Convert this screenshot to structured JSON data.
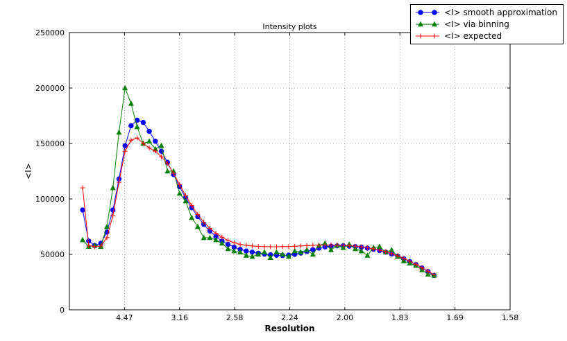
{
  "chart_data": {
    "type": "line",
    "title": "Intensity plots",
    "xlabel": "Resolution",
    "ylabel": "<I>",
    "x_units": "x axis is linear in 1/d^2; tick labels show resolution d in Angstrom",
    "xlim": [
      0,
      0.4
    ],
    "ylim": [
      0,
      250000
    ],
    "grid": {
      "show": true,
      "color": "#888888",
      "dash": "1,3"
    },
    "legend_position": "upper-right, outside top of axes",
    "x_ticks": [
      {
        "pos": 0.05,
        "label": "4.47"
      },
      {
        "pos": 0.1,
        "label": "3.16"
      },
      {
        "pos": 0.15,
        "label": "2.58"
      },
      {
        "pos": 0.2,
        "label": "2.24"
      },
      {
        "pos": 0.25,
        "label": "2.00"
      },
      {
        "pos": 0.3,
        "label": "1.83"
      },
      {
        "pos": 0.35,
        "label": "1.69"
      },
      {
        "pos": 0.4,
        "label": "1.58"
      }
    ],
    "y_ticks": [
      {
        "pos": 0,
        "label": "0"
      },
      {
        "pos": 50000,
        "label": "50000"
      },
      {
        "pos": 100000,
        "label": "100000"
      },
      {
        "pos": 150000,
        "label": "150000"
      },
      {
        "pos": 200000,
        "label": "200000"
      },
      {
        "pos": 250000,
        "label": "250000"
      }
    ],
    "x": [
      0.012,
      0.0175,
      0.023,
      0.0285,
      0.034,
      0.0395,
      0.045,
      0.0505,
      0.056,
      0.0615,
      0.067,
      0.0725,
      0.078,
      0.0835,
      0.089,
      0.0945,
      0.1,
      0.1055,
      0.111,
      0.1165,
      0.122,
      0.1275,
      0.133,
      0.1385,
      0.144,
      0.1495,
      0.155,
      0.1605,
      0.166,
      0.1715,
      0.177,
      0.1825,
      0.188,
      0.1935,
      0.199,
      0.2045,
      0.21,
      0.2155,
      0.221,
      0.2265,
      0.232,
      0.2375,
      0.243,
      0.2485,
      0.254,
      0.2595,
      0.265,
      0.2705,
      0.276,
      0.2815,
      0.287,
      0.2925,
      0.298,
      0.3035,
      0.309,
      0.3145,
      0.32,
      0.3255,
      0.331
    ],
    "series": [
      {
        "name": "<I> smooth approximation",
        "color": "#0000ff",
        "marker": "circle",
        "y": [
          90000,
          62000,
          58000,
          60000,
          70000,
          90000,
          118000,
          148000,
          166000,
          171000,
          169000,
          161000,
          152000,
          143000,
          133000,
          122000,
          111000,
          101000,
          92000,
          84000,
          77000,
          71000,
          66000,
          62000,
          59000,
          56500,
          54500,
          53000,
          52000,
          51000,
          50200,
          49600,
          49200,
          49000,
          49300,
          50000,
          51200,
          52600,
          54200,
          55600,
          56700,
          57400,
          57700,
          57700,
          57400,
          57000,
          56400,
          55600,
          54600,
          53400,
          52000,
          50300,
          48300,
          46000,
          43500,
          40800,
          37800,
          34500,
          31000
        ]
      },
      {
        "name": "<I> via binning",
        "color": "#008000",
        "marker": "triangle",
        "y": [
          63000,
          57000,
          58000,
          57000,
          75000,
          110000,
          160000,
          200000,
          186000,
          165000,
          150000,
          152000,
          145000,
          148000,
          125000,
          125000,
          105000,
          98000,
          83000,
          75000,
          65000,
          65000,
          63000,
          60000,
          55000,
          53000,
          52000,
          49000,
          48000,
          50000,
          52000,
          47000,
          52000,
          50000,
          48000,
          53000,
          52000,
          54000,
          50000,
          58000,
          60000,
          54000,
          58000,
          56000,
          59000,
          55000,
          53000,
          49000,
          56000,
          57000,
          52000,
          54000,
          48000,
          44000,
          42000,
          40000,
          36000,
          32000,
          31000
        ]
      },
      {
        "name": "<I> expected",
        "color": "#ff0000",
        "marker": "plus",
        "y": [
          110000,
          58000,
          57000,
          57500,
          65000,
          85000,
          115000,
          143000,
          153000,
          155000,
          150000,
          146000,
          143000,
          138000,
          132000,
          123000,
          113000,
          103000,
          94000,
          86000,
          79000,
          73500,
          69000,
          65500,
          62500,
          60500,
          59000,
          58200,
          57600,
          57200,
          57000,
          56900,
          56900,
          57000,
          57100,
          57300,
          57600,
          57900,
          58100,
          58300,
          58400,
          58400,
          58300,
          58100,
          57800,
          57400,
          56800,
          56000,
          55000,
          53800,
          52400,
          50700,
          48700,
          46400,
          43800,
          41000,
          38000,
          34800,
          31500
        ]
      }
    ]
  }
}
